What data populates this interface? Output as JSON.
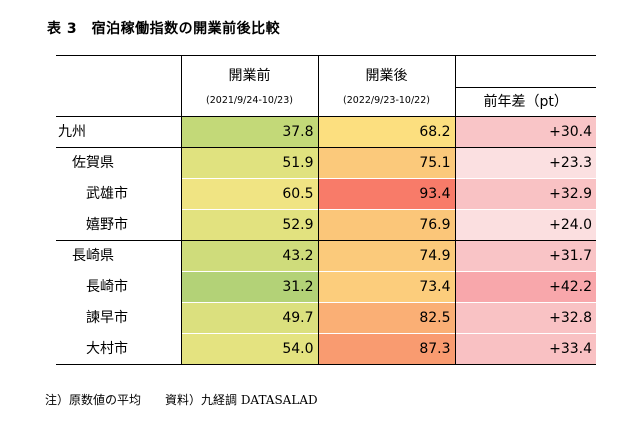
{
  "title": "表 3　宿泊稼働指数の開業前後比較",
  "header": {
    "before_label": "開業前",
    "before_period": "(2021/9/24-10/23)",
    "after_label": "開業後",
    "after_period": "(2022/9/23-10/22)",
    "diff_label": "前年差（pt）"
  },
  "rows": [
    {
      "label": "九州",
      "before": "37.8",
      "after": "68.2",
      "diff": "+30.4",
      "bc": "#c3d978",
      "ac": "#fcdf7f",
      "dc": "#f9c5c7"
    },
    {
      "label": "佐賀県",
      "before": "51.9",
      "after": "75.1",
      "diff": "+23.3",
      "bc": "#e0e27f",
      "ac": "#fbc97b",
      "dc": "#fbe0e1"
    },
    {
      "label": "武雄市",
      "before": "60.5",
      "after": "93.4",
      "diff": "+32.9",
      "bc": "#f0e483",
      "ac": "#f87b69",
      "dc": "#f9c2c4"
    },
    {
      "label": "嬉野市",
      "before": "52.9",
      "after": "76.9",
      "diff": "+24.0",
      "bc": "#e2e27f",
      "ac": "#fbc679",
      "dc": "#fbdfe0"
    },
    {
      "label": "長崎県",
      "before": "43.2",
      "after": "74.9",
      "diff": "+31.7",
      "bc": "#cfdc7b",
      "ac": "#fbca7b",
      "dc": "#f9c4c6"
    },
    {
      "label": "長崎市",
      "before": "31.2",
      "after": "73.4",
      "diff": "+42.2",
      "bc": "#b3d277",
      "ac": "#fccd7c",
      "dc": "#f8a7ab"
    },
    {
      "label": "諫早市",
      "before": "49.7",
      "after": "82.5",
      "diff": "+32.8",
      "bc": "#dbe07e",
      "ac": "#faaf75",
      "dc": "#f9c2c4"
    },
    {
      "label": "大村市",
      "before": "54.0",
      "after": "87.3",
      "diff": "+33.4",
      "bc": "#e4e380",
      "ac": "#f99b70",
      "dc": "#f9c1c3"
    }
  ],
  "note": "注）原数値の平均　　資料）九経調 DATASALAD"
}
